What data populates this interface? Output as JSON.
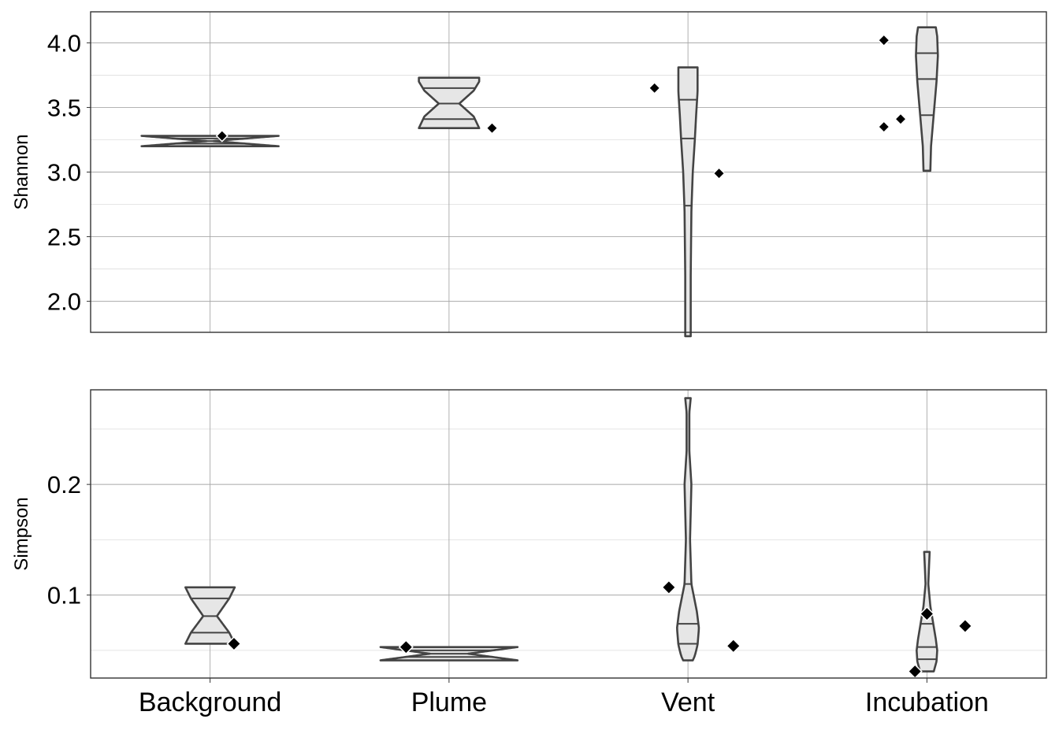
{
  "chart_data": [
    {
      "type": "violin",
      "ylabel": "Shannon",
      "categories": [
        "Background",
        "Plume",
        "Vent",
        "Incubation"
      ],
      "ylim": [
        1.76,
        4.24
      ],
      "yticks": [
        2.0,
        2.5,
        3.0,
        3.5,
        4.0
      ],
      "ytick_labels": [
        "2.0",
        "2.5",
        "3.0",
        "3.5",
        "4.0"
      ],
      "grid": true,
      "violins": [
        {
          "category": "Background",
          "min": 3.2,
          "max": 3.28,
          "quartiles": [
            3.22,
            3.24,
            3.26
          ],
          "profile": [
            [
              3.2,
              1.0
            ],
            [
              3.24,
              0.05
            ],
            [
              3.28,
              1.0
            ]
          ]
        },
        {
          "category": "Plume",
          "min": 3.34,
          "max": 3.73,
          "quartiles": [
            3.41,
            3.53,
            3.65
          ],
          "profile": [
            [
              3.34,
              0.44
            ],
            [
              3.43,
              0.36
            ],
            [
              3.53,
              0.15
            ],
            [
              3.63,
              0.36
            ],
            [
              3.7,
              0.44
            ],
            [
              3.73,
              0.44
            ]
          ]
        },
        {
          "category": "Vent",
          "min": 1.73,
          "max": 3.81,
          "quartiles": [
            2.74,
            3.26,
            3.56
          ],
          "profile": [
            [
              1.73,
              0.04
            ],
            [
              2.2,
              0.04
            ],
            [
              2.7,
              0.05
            ],
            [
              3.0,
              0.07
            ],
            [
              3.25,
              0.1
            ],
            [
              3.45,
              0.12
            ],
            [
              3.62,
              0.14
            ],
            [
              3.81,
              0.14
            ]
          ]
        },
        {
          "category": "Incubation",
          "min": 3.01,
          "max": 4.12,
          "quartiles": [
            3.44,
            3.72,
            3.92
          ],
          "profile": [
            [
              3.01,
              0.05
            ],
            [
              3.2,
              0.06
            ],
            [
              3.45,
              0.1
            ],
            [
              3.7,
              0.14
            ],
            [
              3.9,
              0.16
            ],
            [
              4.05,
              0.15
            ],
            [
              4.12,
              0.13
            ]
          ]
        }
      ],
      "points": [
        {
          "category": "Background",
          "offset": 0.05,
          "value": 3.28
        },
        {
          "category": "Plume",
          "offset": 0.18,
          "value": 3.34
        },
        {
          "category": "Vent",
          "offset": -0.14,
          "value": 3.65
        },
        {
          "category": "Vent",
          "offset": 0.13,
          "value": 2.99
        },
        {
          "category": "Incubation",
          "offset": -0.18,
          "value": 4.02
        },
        {
          "category": "Incubation",
          "offset": -0.18,
          "value": 3.35
        },
        {
          "category": "Incubation",
          "offset": -0.11,
          "value": 3.41
        }
      ]
    },
    {
      "type": "violin",
      "ylabel": "Simpson",
      "categories": [
        "Background",
        "Plume",
        "Vent",
        "Incubation"
      ],
      "ylim": [
        0.025,
        0.2855
      ],
      "yticks": [
        0.1,
        0.2
      ],
      "ytick_labels": [
        "0.1",
        "0.2"
      ],
      "grid": true,
      "violins": [
        {
          "category": "Background",
          "min": 0.056,
          "max": 0.107,
          "quartiles": [
            0.066,
            0.081,
            0.097
          ],
          "profile": [
            [
              0.056,
              0.36
            ],
            [
              0.066,
              0.28
            ],
            [
              0.081,
              0.1
            ],
            [
              0.097,
              0.28
            ],
            [
              0.107,
              0.36
            ]
          ]
        },
        {
          "category": "Plume",
          "min": 0.041,
          "max": 0.053,
          "quartiles": [
            0.044,
            0.047,
            0.05
          ],
          "profile": [
            [
              0.041,
              1.0
            ],
            [
              0.047,
              0.28
            ],
            [
              0.053,
              1.0
            ]
          ]
        },
        {
          "category": "Vent",
          "min": 0.041,
          "max": 0.278,
          "quartiles": [
            0.056,
            0.074,
            0.11
          ],
          "profile": [
            [
              0.041,
              0.07
            ],
            [
              0.045,
              0.1
            ],
            [
              0.055,
              0.14
            ],
            [
              0.07,
              0.16
            ],
            [
              0.085,
              0.13
            ],
            [
              0.11,
              0.05
            ],
            [
              0.15,
              0.03
            ],
            [
              0.2,
              0.05
            ],
            [
              0.23,
              0.02
            ],
            [
              0.265,
              0.02
            ],
            [
              0.278,
              0.04
            ]
          ]
        },
        {
          "category": "Incubation",
          "min": 0.031,
          "max": 0.139,
          "quartiles": [
            0.042,
            0.053,
            0.074
          ],
          "profile": [
            [
              0.031,
              0.1
            ],
            [
              0.04,
              0.14
            ],
            [
              0.05,
              0.15
            ],
            [
              0.06,
              0.13
            ],
            [
              0.075,
              0.09
            ],
            [
              0.09,
              0.05
            ],
            [
              0.11,
              0.02
            ],
            [
              0.125,
              0.03
            ],
            [
              0.139,
              0.04
            ]
          ]
        }
      ],
      "points": [
        {
          "category": "Background",
          "offset": 0.1,
          "value": 0.056
        },
        {
          "category": "Plume",
          "offset": -0.18,
          "value": 0.053
        },
        {
          "category": "Vent",
          "offset": -0.08,
          "value": 0.107
        },
        {
          "category": "Vent",
          "offset": 0.19,
          "value": 0.054
        },
        {
          "category": "Incubation",
          "offset": 0.0,
          "value": 0.083
        },
        {
          "category": "Incubation",
          "offset": -0.05,
          "value": 0.031
        },
        {
          "category": "Incubation",
          "offset": 0.16,
          "value": 0.072
        }
      ]
    }
  ]
}
